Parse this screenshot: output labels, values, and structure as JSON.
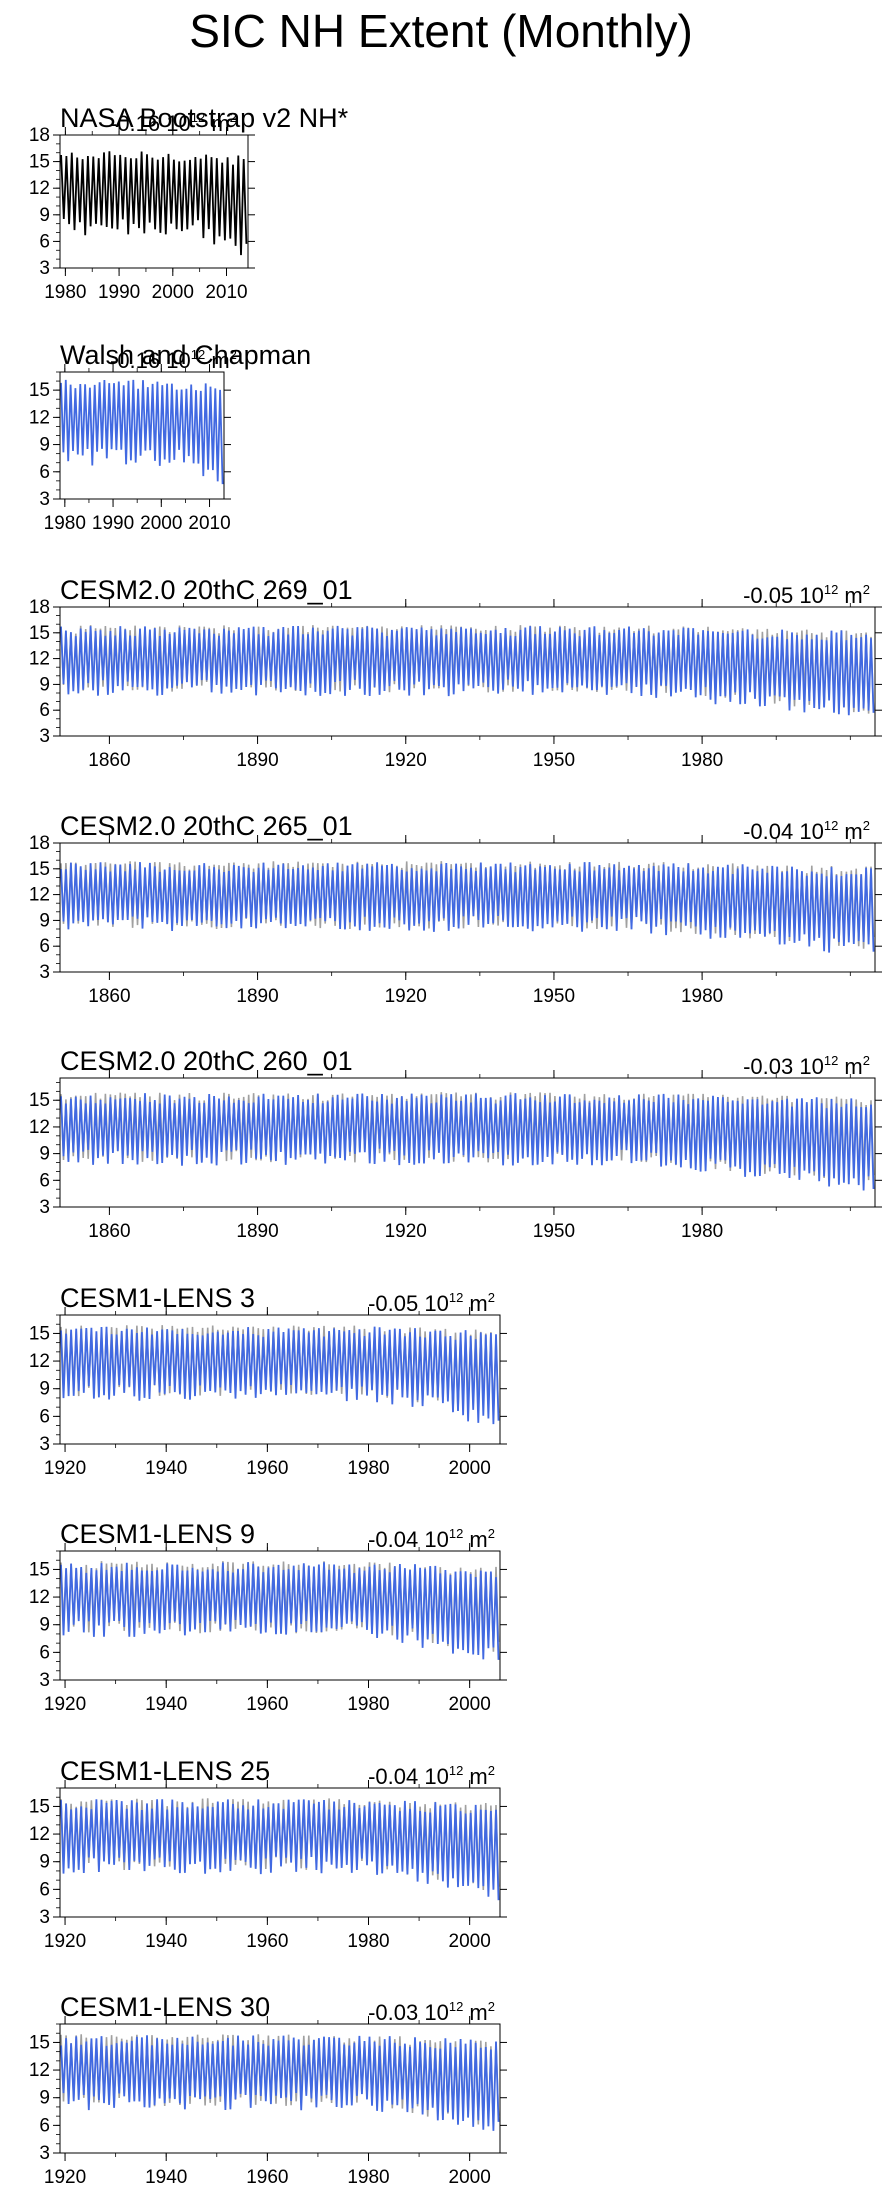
{
  "figure": {
    "title": "SIC NH Extent (Monthly)",
    "trend_unit": "10",
    "trend_unit_exp": "12",
    "trend_unit_suffix": "m",
    "trend_unit_suffix_exp": "2"
  },
  "colors": {
    "observed": "#000000",
    "model": "#4169e1",
    "obs_overlay": "#a0a0a0"
  },
  "chart_data": [
    {
      "type": "line",
      "title": "NASA Bootstrap v2 NH*",
      "trend": "-0.16",
      "x_range": [
        1979,
        2014
      ],
      "ylim": [
        3,
        18
      ],
      "yticks": [
        3,
        6,
        9,
        12,
        15,
        18
      ],
      "xticks": [
        1980,
        1990,
        2000,
        2010
      ],
      "series": [
        {
          "name": "",
          "values": "seasonal cycle ~7 to ~16"
        }
      ]
    },
    {
      "type": "line",
      "title": "Walsh and Chapman",
      "trend": "-0.16",
      "x_range": [
        1979,
        2013
      ],
      "ylim": [
        3,
        17
      ],
      "yticks": [
        3,
        6,
        9,
        12,
        15
      ],
      "xticks": [
        1980,
        1990,
        2000,
        2010
      ],
      "series": [
        {
          "name": "",
          "values": "seasonal cycle ~7 to ~15.5"
        }
      ]
    },
    {
      "type": "line",
      "title": "CESM2.0 20thC 269_01",
      "trend": "-0.05",
      "x_range": [
        1850,
        2015
      ],
      "ylim": [
        3,
        18
      ],
      "yticks": [
        3,
        6,
        9,
        12,
        15,
        18
      ],
      "xticks": [
        1860,
        1890,
        1920,
        1950,
        1980
      ],
      "series": [
        {
          "name": "",
          "values": "seasonal cycle ~8 to ~15.5"
        }
      ]
    },
    {
      "type": "line",
      "title": "CESM2.0 20thC 265_01",
      "trend": "-0.04",
      "x_range": [
        1850,
        2015
      ],
      "ylim": [
        3,
        18
      ],
      "yticks": [
        3,
        6,
        9,
        12,
        15,
        18
      ],
      "xticks": [
        1860,
        1890,
        1920,
        1950,
        1980
      ],
      "series": [
        {
          "name": "",
          "values": "seasonal cycle ~8.5 to ~15.5"
        }
      ]
    },
    {
      "type": "line",
      "title": "CESM2.0 20thC 260_01",
      "trend": "-0.03",
      "x_range": [
        1850,
        2015
      ],
      "ylim": [
        3,
        17.5
      ],
      "yticks": [
        3,
        6,
        9,
        12,
        15
      ],
      "xticks": [
        1860,
        1890,
        1920,
        1950,
        1980
      ],
      "series": [
        {
          "name": "",
          "values": "seasonal cycle ~9 to ~16"
        }
      ]
    },
    {
      "type": "line",
      "title": "CESM1-LENS 3",
      "trend": "-0.05",
      "x_range": [
        1919,
        2006
      ],
      "ylim": [
        3,
        17
      ],
      "yticks": [
        3,
        6,
        9,
        12,
        15
      ],
      "xticks": [
        1920,
        1940,
        1960,
        1980,
        2000
      ],
      "series": [
        {
          "name": "",
          "values": "seasonal cycle ~8 to ~15.5"
        }
      ]
    },
    {
      "type": "line",
      "title": "CESM1-LENS 9",
      "trend": "-0.04",
      "x_range": [
        1919,
        2006
      ],
      "ylim": [
        3,
        17
      ],
      "yticks": [
        3,
        6,
        9,
        12,
        15
      ],
      "xticks": [
        1920,
        1940,
        1960,
        1980,
        2000
      ],
      "series": [
        {
          "name": "",
          "values": "seasonal cycle ~8 to ~15.5"
        }
      ]
    },
    {
      "type": "line",
      "title": "CESM1-LENS 25",
      "trend": "-0.04",
      "x_range": [
        1919,
        2006
      ],
      "ylim": [
        3,
        17
      ],
      "yticks": [
        3,
        6,
        9,
        12,
        15
      ],
      "xticks": [
        1920,
        1940,
        1960,
        1980,
        2000
      ],
      "series": [
        {
          "name": "",
          "values": "seasonal cycle ~8 to ~15.5"
        }
      ]
    },
    {
      "type": "line",
      "title": "CESM1-LENS 30",
      "trend": "-0.03",
      "x_range": [
        1919,
        2006
      ],
      "ylim": [
        3,
        17
      ],
      "yticks": [
        3,
        6,
        9,
        12,
        15
      ],
      "xticks": [
        1920,
        1940,
        1960,
        1980,
        2000
      ],
      "series": [
        {
          "name": "",
          "values": "seasonal cycle ~8 to ~15.5"
        }
      ]
    }
  ]
}
